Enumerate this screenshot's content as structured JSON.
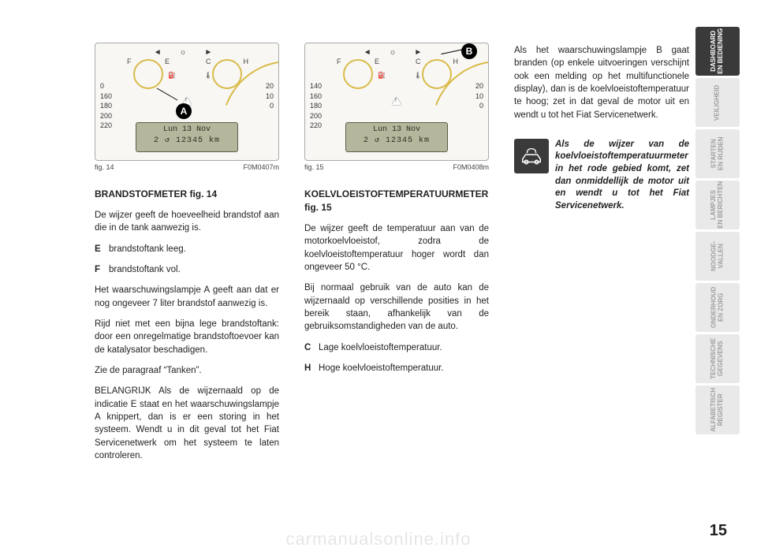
{
  "page_number": "15",
  "watermark": "carmanualsonline.info",
  "sidebar": {
    "tabs": [
      {
        "label": "DASHBOARD\nEN BEDIENING",
        "active": true
      },
      {
        "label": "VEILIGHEID",
        "active": false
      },
      {
        "label": "STARTEN\nEN RIJDEN",
        "active": false
      },
      {
        "label": "LAMPJES\nEN BERICHTEN",
        "active": false
      },
      {
        "label": "NOODGE-\nVALLEN",
        "active": false
      },
      {
        "label": "ONDERHOUD\nEN ZORG",
        "active": false
      },
      {
        "label": "TECHNISCHE\nGEGEVENS",
        "active": false
      },
      {
        "label": "ALFABETISCH\nREGISTER",
        "active": false
      }
    ]
  },
  "figures": {
    "fig14": {
      "caption_left": "fig. 14",
      "caption_right": "F0M0407m",
      "callout": "A",
      "fuel_letters": {
        "F": "F",
        "E": "E"
      },
      "temp_letters": {
        "C": "C",
        "H": "H"
      },
      "speed_scale": [
        "0",
        "160",
        "180",
        "200",
        "220"
      ],
      "rpm_scale": [
        "20",
        "10",
        "0"
      ],
      "lcd_line1": "Lun 13 Nov",
      "lcd_line2": "2 ↺   12345 km",
      "colors": {
        "panel_bg": "#f8f7f3",
        "dial": "#d9bb4a",
        "lcd": "#b4b79c"
      }
    },
    "fig15": {
      "caption_left": "fig. 15",
      "caption_right": "F0M0408m",
      "callout": "B",
      "fuel_letters": {
        "F": "F",
        "E": "E"
      },
      "temp_letters": {
        "C": "C",
        "H": "H"
      },
      "speed_scale": [
        "140",
        "160",
        "180",
        "200",
        "220"
      ],
      "rpm_scale": [
        "20",
        "10",
        "0"
      ],
      "lcd_line1": "Lun 13 Nov",
      "lcd_line2": "2 ↺   12345 km",
      "colors": {
        "panel_bg": "#f8f7f3",
        "dial": "#d9bb4a",
        "lcd": "#b4b79c"
      }
    }
  },
  "col1": {
    "heading": "BRANDSTOFMETER fig. 14",
    "p1": "De wijzer geeft de hoeveelheid brandstof aan die in de tank aanwezig is.",
    "E_key": "E",
    "E_text": "brandstoftank leeg.",
    "F_key": "F",
    "F_text": "brandstoftank vol.",
    "p2": "Het waarschuwingslampje A geeft aan dat er nog ongeveer 7 liter brandstof aanwezig is.",
    "p3": "Rijd niet met een bijna lege brandstoftank: door een onregelmatige brandstoftoevoer kan de katalysator beschadigen.",
    "p4": "Zie de paragraaf “Tanken”.",
    "p5": "BELANGRIJK Als de wijzernaald op de indicatie E staat en het waarschuwingslampje A knippert, dan is er een storing in het systeem. Wendt u in dit geval tot het Fiat Servicenetwerk om het systeem te laten controleren."
  },
  "col2": {
    "heading": "KOELVLOEISTOFTEMPERATUURMETER fig. 15",
    "p1": "De wijzer geeft de temperatuur aan van de motorkoelvloeistof, zodra de koelvloeistoftemperatuur hoger wordt dan ongeveer 50 °C.",
    "p2": "Bij normaal gebruik van de auto kan de wijzernaald op verschillende posities in het bereik staan, afhankelijk van de gebruiksomstandigheden van de auto.",
    "C_key": "C",
    "C_text": "Lage koelvloeistoftemperatuur.",
    "H_key": "H",
    "H_text": "Hoge koelvloeistoftemperatuur."
  },
  "col3": {
    "p1": "Als het waarschuwingslampje B gaat branden (op enkele uitvoeringen verschijnt ook een melding op het multifunctionele display), dan is de koelvloeistoftemperatuur te hoog; zet in dat geval de motor uit en wendt u tot het Fiat Servicenetwerk.",
    "warning": "Als de wijzer van de koelvloeistoftemperatuurmeter in het rode gebied komt, zet dan onmiddellijk de motor uit en wendt u tot het Fiat Servicenetwerk."
  }
}
